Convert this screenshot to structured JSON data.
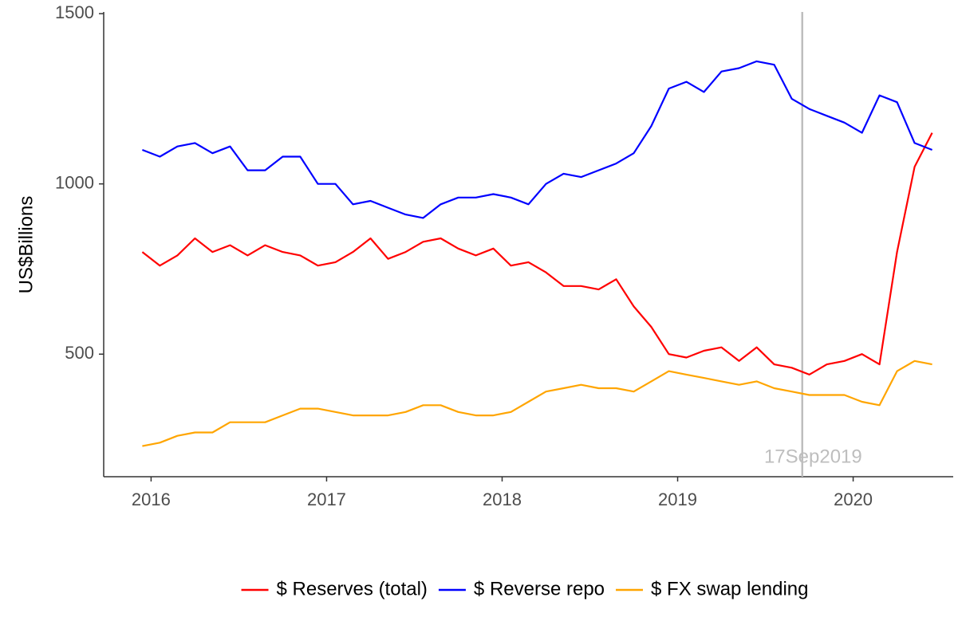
{
  "chart_data": {
    "type": "line",
    "y_label": "US$Billions",
    "x": [
      2015.95,
      2016.05,
      2016.15,
      2016.25,
      2016.35,
      2016.45,
      2016.55,
      2016.65,
      2016.75,
      2016.85,
      2016.95,
      2017.05,
      2017.15,
      2017.25,
      2017.35,
      2017.45,
      2017.55,
      2017.65,
      2017.75,
      2017.85,
      2017.95,
      2018.05,
      2018.15,
      2018.25,
      2018.35,
      2018.45,
      2018.55,
      2018.65,
      2018.75,
      2018.85,
      2018.95,
      2019.05,
      2019.15,
      2019.25,
      2019.35,
      2019.45,
      2019.55,
      2019.65,
      2019.75,
      2019.85,
      2019.95,
      2020.05,
      2020.15,
      2020.25,
      2020.35,
      2020.45
    ],
    "series": [
      {
        "name": "$ Reserves (total)",
        "color": "#ff0000",
        "values": [
          800,
          760,
          790,
          840,
          800,
          820,
          790,
          820,
          800,
          790,
          760,
          770,
          800,
          840,
          780,
          800,
          830,
          840,
          810,
          790,
          810,
          760,
          770,
          740,
          700,
          700,
          690,
          720,
          640,
          580,
          500,
          490,
          510,
          520,
          480,
          520,
          470,
          460,
          440,
          470,
          480,
          500,
          470,
          800,
          1050,
          1150
        ]
      },
      {
        "name": "$ Reverse repo",
        "color": "#0000ff",
        "values": [
          1100,
          1080,
          1110,
          1120,
          1090,
          1110,
          1040,
          1040,
          1080,
          1080,
          1000,
          1000,
          940,
          950,
          930,
          910,
          900,
          940,
          960,
          960,
          970,
          960,
          940,
          1000,
          1030,
          1020,
          1040,
          1060,
          1090,
          1170,
          1280,
          1300,
          1270,
          1330,
          1340,
          1360,
          1350,
          1250,
          1220,
          1200,
          1180,
          1150,
          1260,
          1240,
          1120,
          1100
        ]
      },
      {
        "name": "$ FX swap lending",
        "color": "#ffa500",
        "values": [
          230,
          240,
          260,
          270,
          270,
          300,
          300,
          300,
          320,
          340,
          340,
          330,
          320,
          320,
          320,
          330,
          350,
          350,
          330,
          320,
          320,
          330,
          360,
          390,
          400,
          410,
          400,
          400,
          390,
          420,
          450,
          440,
          430,
          420,
          410,
          420,
          400,
          390,
          380,
          380,
          380,
          360,
          350,
          450,
          480,
          470
        ]
      }
    ],
    "xlim": [
      2015.73,
      2020.57
    ],
    "xticks": [
      2016,
      2017,
      2018,
      2019,
      2020
    ],
    "ylim": [
      140,
      1505
    ],
    "yticks": [
      500,
      1000,
      1500
    ],
    "annotations": [
      {
        "text": "17Sep2019",
        "x": 2019.71,
        "color": "#bebebe"
      }
    ],
    "legend": "bottom"
  }
}
